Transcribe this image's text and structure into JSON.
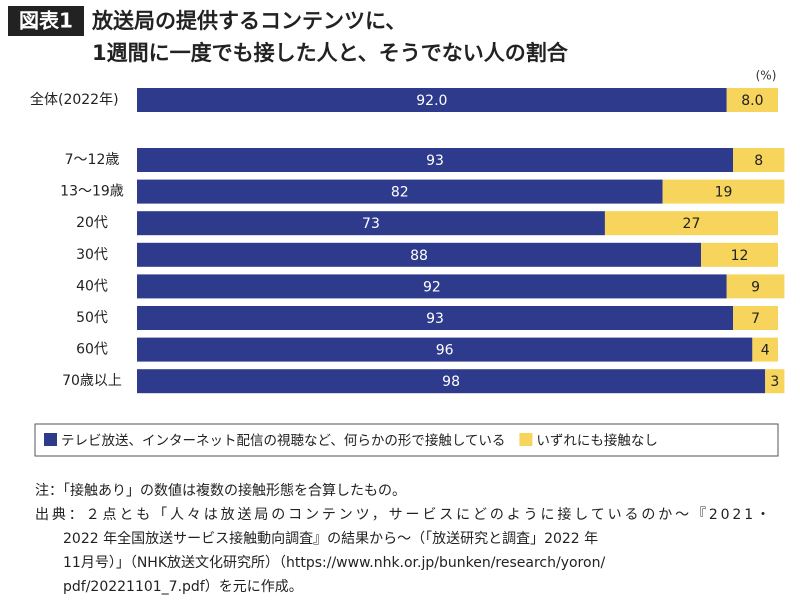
{
  "chart_data": {
    "type": "bar",
    "orientation": "horizontal",
    "stacked": true,
    "badge": "図表1",
    "title": [
      "放送局の提供するコンテンツに、",
      "1週間に一度でも接した人と、そうでない人の割合"
    ],
    "unit": "(%)",
    "categories": [
      "全体(2022年)",
      "7〜12歳",
      "13〜19歳",
      "20代",
      "30代",
      "40代",
      "50代",
      "60代",
      "70歳以上"
    ],
    "series": [
      {
        "name": "テレビ放送、インターネット配信の視聴など、何らかの形で接触している",
        "color": "#2e3a8c",
        "values": [
          92.0,
          93,
          82,
          73,
          88,
          92,
          93,
          96,
          98
        ],
        "value_labels": [
          "92.0",
          "93",
          "82",
          "73",
          "88",
          "92",
          "93",
          "96",
          "98"
        ]
      },
      {
        "name": "いずれにも接触なし",
        "color": "#f7d45c",
        "values": [
          8.0,
          8,
          19,
          27,
          12,
          9,
          7,
          4,
          3
        ],
        "value_labels": [
          "8.0",
          "8",
          "19",
          "27",
          "12",
          "9",
          "7",
          "4",
          "3"
        ]
      }
    ],
    "xlim": [
      0,
      100
    ]
  },
  "notes": {
    "note": "注：「接触あり」の数値は複数の接触形態を合算したもの。",
    "source_lines": [
      "出典：２点とも「人々は放送局のコンテンツ，サービスにどのように接しているのか～『2021・",
      "2022 年全国放送サービス接触動向調査』の結果から～（「放送研究と調査」2022 年",
      "11月号）」（NHK放送文化研究所）（https://www.nhk.or.jp/bunken/research/yoron/",
      "pdf/20221101_7.pdf）を元に作成。"
    ]
  }
}
